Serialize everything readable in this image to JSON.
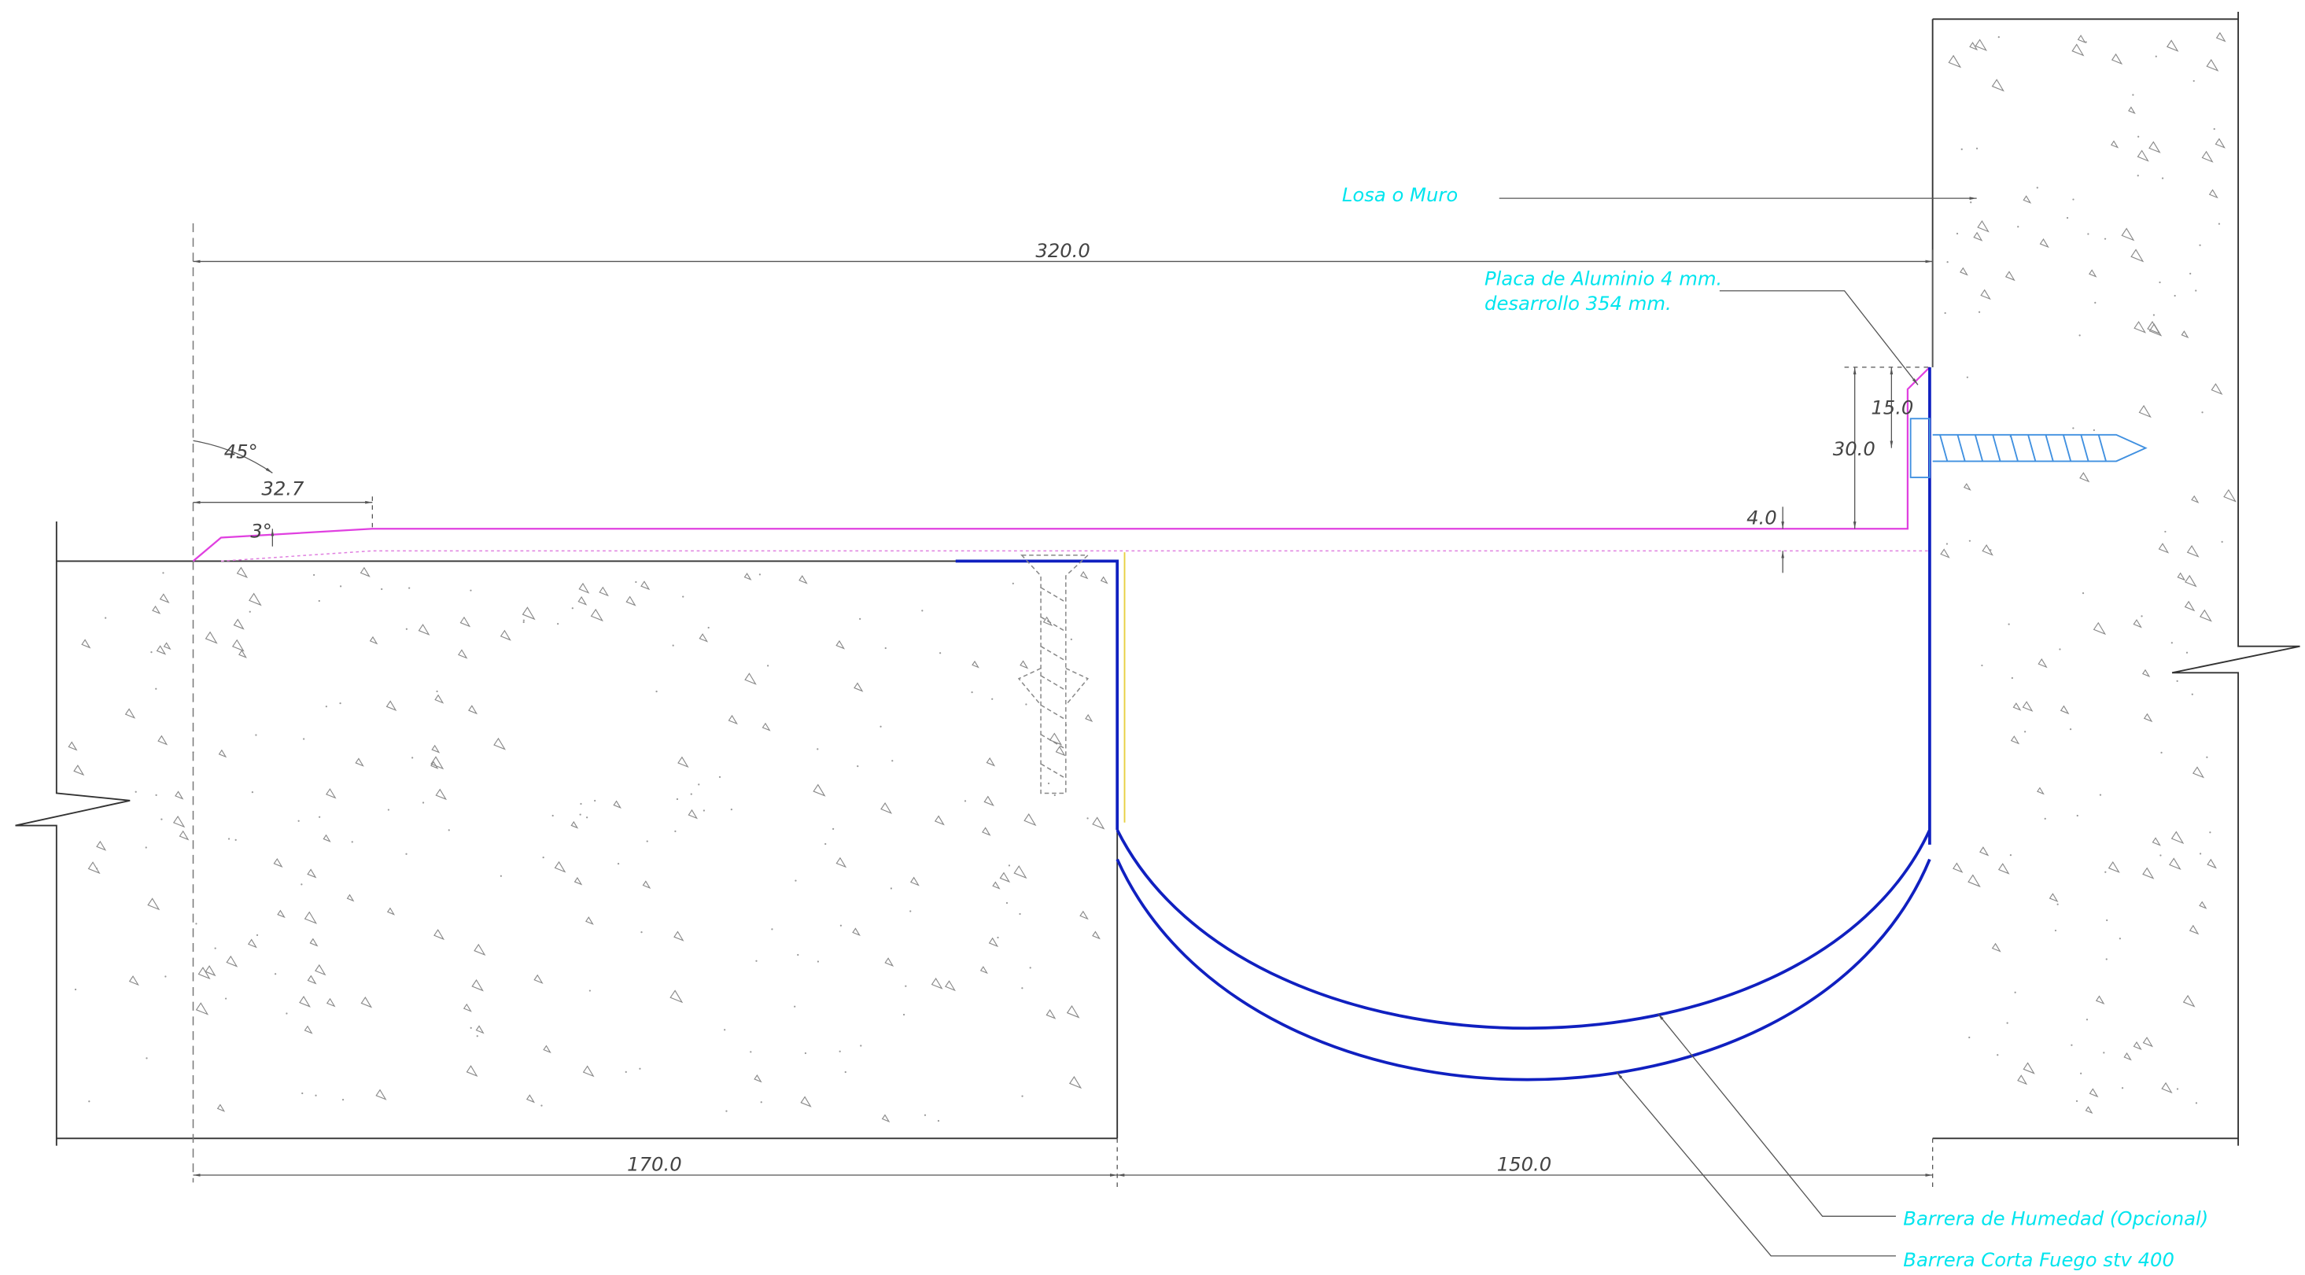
{
  "labels": {
    "slab": "Losa o Muro",
    "plate_line1": "Placa de Aluminio 4 mm.",
    "plate_line2": "desarrollo 354 mm.",
    "moisture_barrier": "Barrera de Humedad (Opcional)",
    "fire_barrier": "Barrera Corta Fuego stv 400"
  },
  "dimensions": {
    "total_width": "320.0",
    "plate_height": "30.0",
    "screw_height": "15.0",
    "plate_thickness": "4.0",
    "bevel_angle": "45°",
    "bevel_length": "32.7",
    "slope_angle": "3°",
    "left_slab": "170.0",
    "gap": "150.0"
  }
}
